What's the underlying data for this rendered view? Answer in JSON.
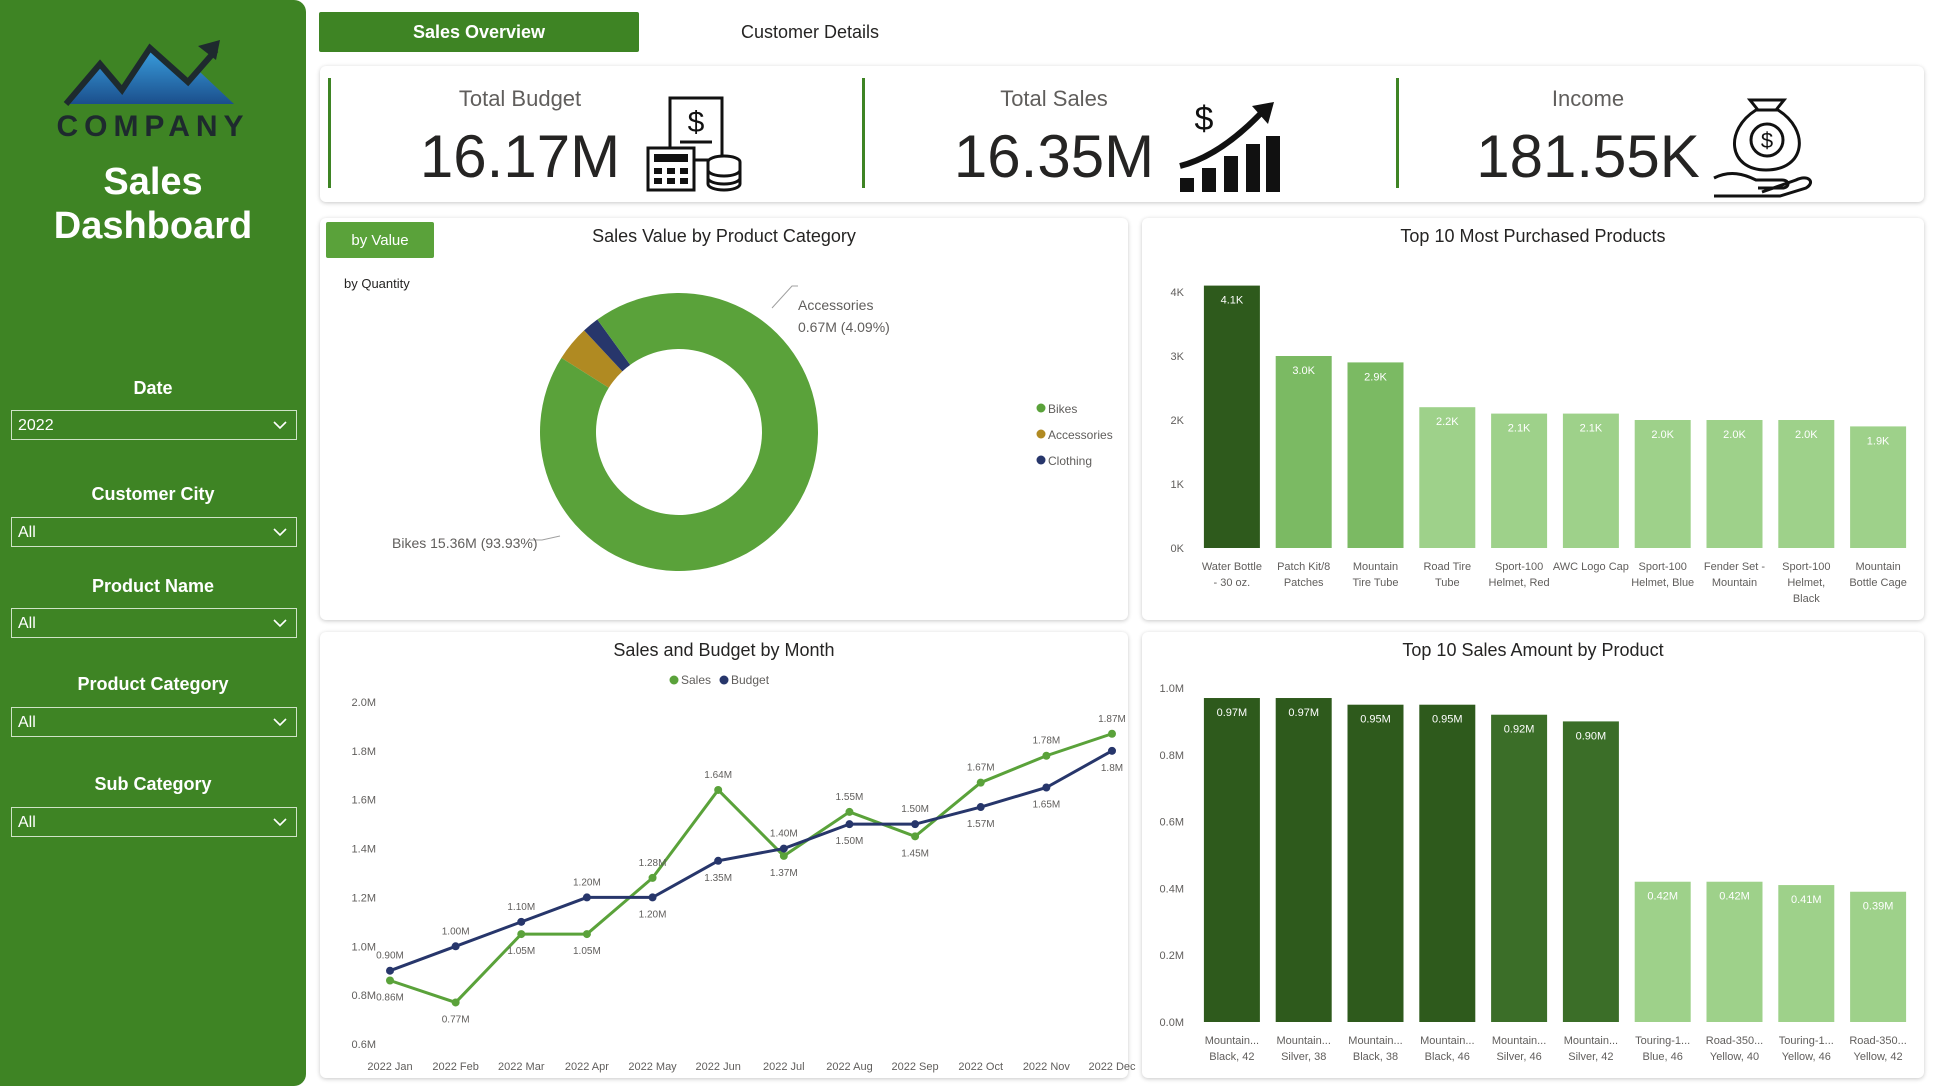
{
  "sidebar": {
    "company": "COMPANY",
    "title_line1": "Sales",
    "title_line2": "Dashboard",
    "filters": [
      {
        "label": "Date",
        "value": "2022"
      },
      {
        "label": "Customer City",
        "value": "All"
      },
      {
        "label": "Product Name",
        "value": "All"
      },
      {
        "label": "Product Category",
        "value": "All"
      },
      {
        "label": "Sub Category",
        "value": "All"
      }
    ]
  },
  "tabs": [
    {
      "label": "Sales Overview",
      "active": true
    },
    {
      "label": "Customer Details",
      "active": false
    }
  ],
  "kpis": [
    {
      "label": "Total Budget",
      "value": "16.17M",
      "icon": "budget-calculator-icon"
    },
    {
      "label": "Total Sales",
      "value": "16.35M",
      "icon": "sales-growth-icon"
    },
    {
      "label": "Income",
      "value": "181.55K",
      "icon": "money-hand-icon"
    }
  ],
  "donut": {
    "title": "Sales Value by Product Category",
    "toggle_active": "by Value",
    "toggle_alt": "by Quantity",
    "label_accessories_name": "Accessories",
    "label_accessories_value": "0.67M (4.09%)",
    "label_bikes": "Bikes 15.36M (93.93%)"
  },
  "top10_purchased": {
    "title": "Top 10 Most Purchased Products"
  },
  "sales_budget": {
    "title": "Sales and Budget by Month"
  },
  "top10_sales": {
    "title": "Top 10 Sales Amount by Product"
  },
  "colors": {
    "green_dark": "#3e8424",
    "green": "#5aa23a",
    "olive": "#b08a22",
    "navy": "#27366b",
    "bar_dark": "#2e5a1c",
    "bar_light": "#84c06d"
  },
  "chart_data": [
    {
      "type": "pie",
      "title": "Sales Value by Product Category",
      "categories": [
        "Bikes",
        "Accessories",
        "Clothing"
      ],
      "values": [
        15.36,
        0.67,
        0.32
      ],
      "labels": [
        "15.36M (93.93%)",
        "0.67M (4.09%)",
        ""
      ],
      "legend": [
        "Bikes",
        "Accessories",
        "Clothing"
      ],
      "legend_position": "right",
      "donut": true
    },
    {
      "type": "bar",
      "title": "Top 10 Most Purchased Products",
      "categories": [
        "Water Bottle - 30 oz.",
        "Patch Kit/8 Patches",
        "Mountain Tire Tube",
        "Road Tire Tube",
        "Sport-100 Helmet, Red",
        "AWC Logo Cap",
        "Sport-100 Helmet, Blue",
        "Fender Set - Mountain",
        "Sport-100 Helmet, Black",
        "Mountain Bottle Cage"
      ],
      "values": [
        4100,
        3000,
        2900,
        2200,
        2100,
        2100,
        2000,
        2000,
        2000,
        1900
      ],
      "data_labels": [
        "4.1K",
        "3.0K",
        "2.9K",
        "2.2K",
        "2.1K",
        "2.1K",
        "2.0K",
        "2.0K",
        "2.0K",
        "1.9K"
      ],
      "yticks": [
        "0K",
        "1K",
        "2K",
        "3K",
        "4K"
      ],
      "ylim": [
        0,
        4000
      ]
    },
    {
      "type": "line",
      "title": "Sales and Budget by Month",
      "categories": [
        "2022 Jan",
        "2022 Feb",
        "2022 Mar",
        "2022 Apr",
        "2022 May",
        "2022 Jun",
        "2022 Jul",
        "2022 Aug",
        "2022 Sep",
        "2022 Oct",
        "2022 Nov",
        "2022 Dec"
      ],
      "series": [
        {
          "name": "Sales",
          "color": "#5aa23a",
          "values": [
            0.86,
            0.77,
            1.05,
            1.05,
            1.28,
            1.64,
            1.37,
            1.55,
            1.45,
            1.67,
            1.78,
            1.87
          ],
          "labels": [
            "0.86M",
            "0.77M",
            "1.05M",
            "1.05M",
            "1.28M",
            "1.64M",
            "1.37M",
            "1.55M",
            "1.45M",
            "1.67M",
            "1.78M",
            "1.87M"
          ]
        },
        {
          "name": "Budget",
          "color": "#27366b",
          "values": [
            0.9,
            1.0,
            1.1,
            1.2,
            1.2,
            1.35,
            1.4,
            1.5,
            1.5,
            1.57,
            1.65,
            1.8
          ],
          "labels": [
            "0.90M",
            "1.00M",
            "1.10M",
            "1.20M",
            "1.20M",
            "1.35M",
            "1.40M",
            "1.50M",
            "1.50M",
            "1.57M",
            "1.65M",
            "1.8M"
          ]
        }
      ],
      "yticks": [
        "0.6M",
        "0.8M",
        "1.0M",
        "1.2M",
        "1.4M",
        "1.6M",
        "1.8M",
        "2.0M"
      ],
      "ylim": [
        0.6,
        2.0
      ],
      "legend_position": "top"
    },
    {
      "type": "bar",
      "title": "Top 10 Sales Amount by Product",
      "categories": [
        "Mountain... Black, 42",
        "Mountain... Silver, 38",
        "Mountain... Black, 38",
        "Mountain... Black, 46",
        "Mountain... Silver, 46",
        "Mountain... Silver, 42",
        "Touring-1... Blue, 46",
        "Road-350... Yellow, 40",
        "Touring-1... Yellow, 46",
        "Road-350... Yellow, 42"
      ],
      "values": [
        0.97,
        0.97,
        0.95,
        0.95,
        0.92,
        0.9,
        0.42,
        0.42,
        0.41,
        0.39
      ],
      "data_labels": [
        "0.97M",
        "0.97M",
        "0.95M",
        "0.95M",
        "0.92M",
        "0.90M",
        "0.42M",
        "0.42M",
        "0.41M",
        "0.39M"
      ],
      "yticks": [
        "0.0M",
        "0.2M",
        "0.4M",
        "0.6M",
        "0.8M",
        "1.0M"
      ],
      "ylim": [
        0,
        1.0
      ]
    }
  ]
}
